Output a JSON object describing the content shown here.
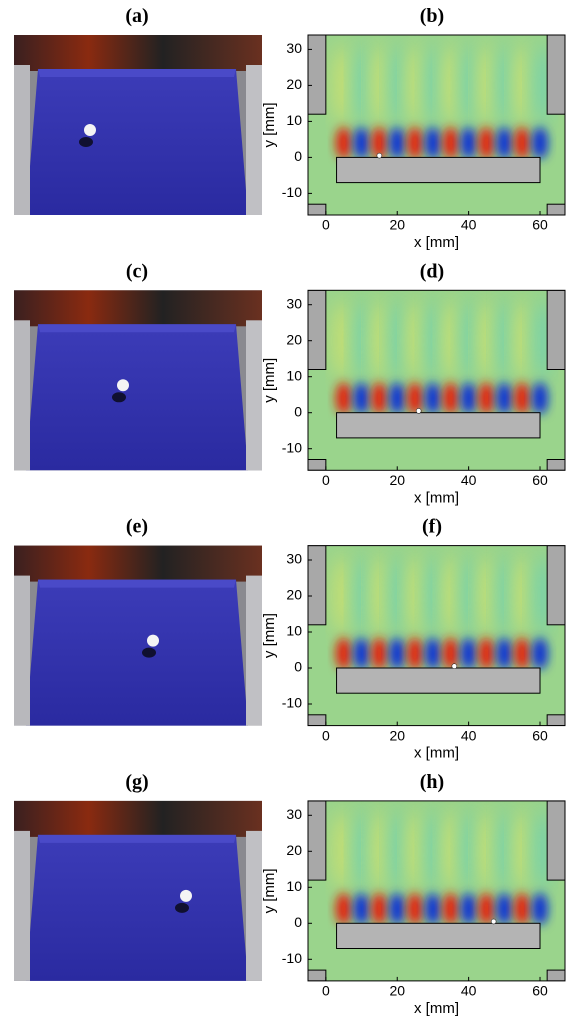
{
  "panels": [
    {
      "photo_label": "(a)",
      "plot_label": "(b)",
      "droplet_x": 15,
      "droplet_y": 0.5
    },
    {
      "photo_label": "(c)",
      "plot_label": "(d)",
      "droplet_x": 26,
      "droplet_y": 0.5
    },
    {
      "photo_label": "(e)",
      "plot_label": "(f)",
      "droplet_x": 36,
      "droplet_y": 0.5
    },
    {
      "photo_label": "(g)",
      "plot_label": "(h)",
      "droplet_x": 47,
      "droplet_y": 0.5
    }
  ],
  "axes": {
    "xlabel": "x [mm]",
    "ylabel": "y [mm]",
    "xlim": [
      -5,
      67
    ],
    "ylim": [
      -16,
      34
    ],
    "xticks": [
      0,
      20,
      40,
      60
    ],
    "yticks": [
      -10,
      0,
      10,
      20,
      30
    ]
  }
}
